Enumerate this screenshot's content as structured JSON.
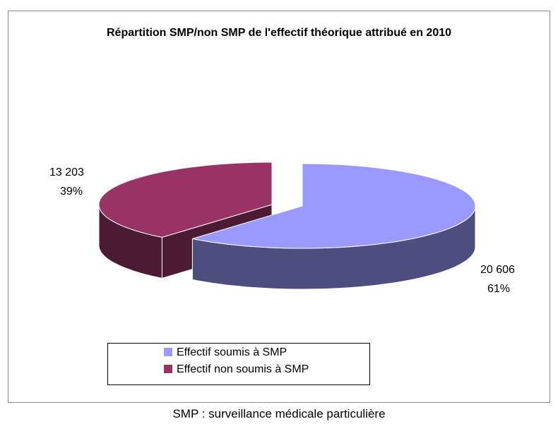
{
  "chart_data": {
    "type": "pie3d",
    "title": "Répartition SMP/non SMP de l'effectif théorique attribué en 2010",
    "categories": [
      "Effectif soumis à SMP",
      "Effectif non soumis à SMP"
    ],
    "values": [
      20606,
      13203
    ],
    "value_labels": [
      "20 606",
      "13 203"
    ],
    "percents": [
      61,
      39
    ],
    "percent_labels": [
      "61%",
      "39%"
    ],
    "colors": [
      "#9999ff",
      "#993366"
    ],
    "side_colors": [
      "#4d4d80",
      "#4d1a33"
    ],
    "caption": "SMP : surveillance médicale particulière"
  }
}
